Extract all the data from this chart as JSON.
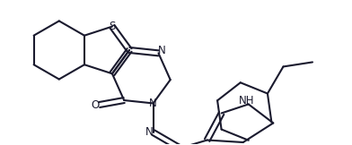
{
  "bg_color": "#ffffff",
  "line_color": "#1a1a2e",
  "lw": 1.5,
  "fs": 8.5,
  "figsize": [
    3.92,
    1.62
  ],
  "dpi": 100,
  "xlim": [
    0.0,
    7.8
  ],
  "ylim": [
    0.0,
    3.2
  ]
}
